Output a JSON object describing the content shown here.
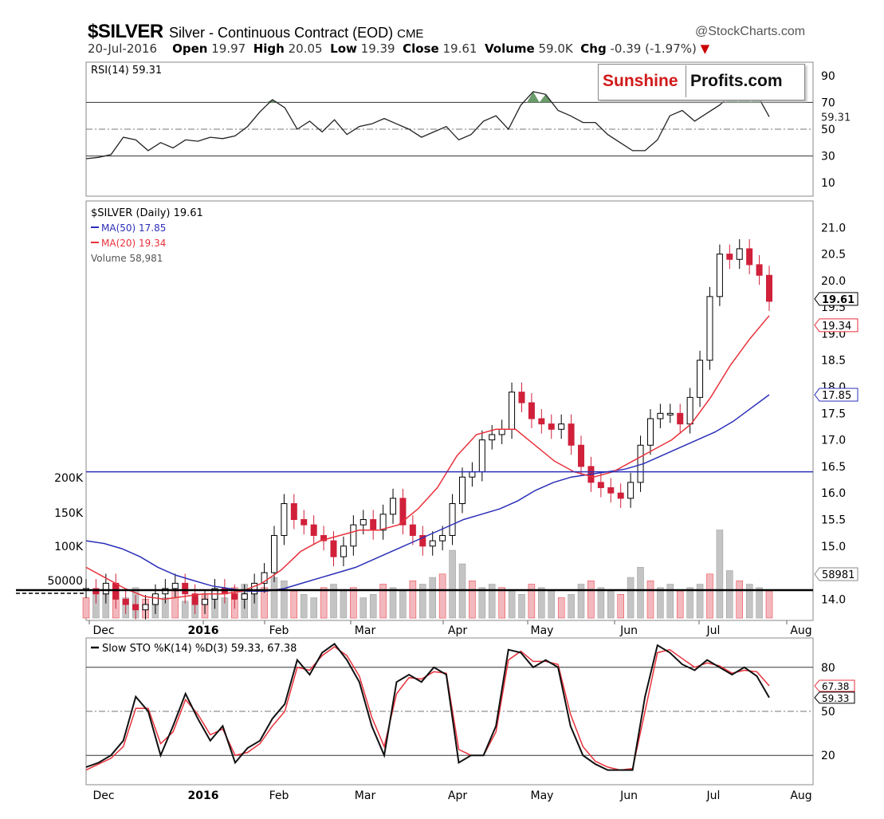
{
  "header": {
    "ticker": "$SILVER",
    "description": "Silver - Continuous Contract (EOD)",
    "exchange": "CME",
    "source": "@StockCharts.com",
    "date": "20-Jul-2016",
    "open_label": "Open",
    "open": "19.97",
    "high_label": "High",
    "high": "20.05",
    "low_label": "Low",
    "low": "19.39",
    "close_label": "Close",
    "close": "19.61",
    "volume_label": "Volume",
    "volume": "59.0K",
    "chg_label": "Chg",
    "chg": "-0.39 (-1.97%)"
  },
  "watermark": {
    "part1": "Sunshine",
    "part2": "Profits.com"
  },
  "colors": {
    "ma50": "#2b2fb8",
    "ma20": "#e8323c",
    "up": "#000000",
    "down": "#d0203a",
    "overbought_fill": "#6b9a6b",
    "level_line": "#2b2fb8"
  },
  "chart_data": [
    {
      "type": "line",
      "title": "RSI(14) 59.31",
      "series": [
        {
          "name": "RSI(14)",
          "values": [
            28,
            29,
            31,
            44,
            42,
            34,
            40,
            36,
            42,
            41,
            44,
            43,
            45,
            52,
            63,
            72,
            66,
            50,
            56,
            48,
            57,
            46,
            52,
            54,
            58,
            54,
            50,
            44,
            48,
            52,
            42,
            46,
            56,
            60,
            50,
            68,
            78,
            76,
            64,
            60,
            55,
            55,
            46,
            40,
            34,
            34,
            42,
            60,
            64,
            56,
            62,
            68,
            76,
            80,
            76,
            59.31
          ]
        }
      ],
      "ylim": [
        0,
        100
      ],
      "yticks": [
        "90",
        "70",
        "50",
        "30",
        "10"
      ],
      "reference_lines": [
        70,
        50,
        30
      ],
      "last_value_label": "59.31"
    },
    {
      "type": "line",
      "title": "$SILVER (Daily) 19.61",
      "xlabels": [
        "Dec",
        "2016",
        "Feb",
        "Mar",
        "Apr",
        "May",
        "Jun",
        "Jul",
        "Aug"
      ],
      "ylim": [
        13.6,
        21.5
      ],
      "yticks": [
        "21.0",
        "20.5",
        "20.0",
        "19.5",
        "19.0",
        "18.5",
        "18.0",
        "17.5",
        "17.0",
        "16.5",
        "16.0",
        "15.5",
        "15.0",
        "14.5",
        "14.0"
      ],
      "price": [
        14.2,
        14.1,
        14.3,
        14.0,
        13.9,
        13.8,
        13.9,
        14.1,
        14.2,
        14.3,
        14.1,
        13.9,
        14.0,
        14.2,
        14.1,
        14.0,
        14.1,
        14.3,
        14.5,
        15.2,
        15.8,
        15.5,
        15.4,
        15.2,
        15.1,
        14.8,
        15.0,
        15.4,
        15.5,
        15.3,
        15.6,
        15.9,
        15.4,
        15.2,
        15.0,
        15.1,
        15.2,
        15.8,
        16.3,
        16.4,
        17.0,
        17.1,
        17.2,
        17.9,
        17.7,
        17.4,
        17.3,
        17.2,
        17.3,
        16.9,
        16.5,
        16.2,
        16.1,
        16.0,
        15.9,
        16.2,
        16.9,
        17.4,
        17.5,
        17.5,
        17.3,
        17.8,
        18.5,
        19.7,
        20.5,
        20.4,
        20.6,
        20.3,
        20.1,
        19.61
      ],
      "series": [
        {
          "name": "MA(50) 17.85",
          "values": [
            15.1,
            15.05,
            14.95,
            14.8,
            14.6,
            14.45,
            14.35,
            14.25,
            14.2,
            14.15,
            14.15,
            14.2,
            14.3,
            14.4,
            14.5,
            14.6,
            14.75,
            14.9,
            15.05,
            15.2,
            15.35,
            15.5,
            15.6,
            15.7,
            15.85,
            16.05,
            16.2,
            16.3,
            16.35,
            16.4,
            16.45,
            16.55,
            16.7,
            16.85,
            17.0,
            17.15,
            17.35,
            17.6,
            17.85
          ]
        },
        {
          "name": "MA(20) 19.34",
          "values": [
            14.6,
            14.4,
            14.2,
            14.05,
            14.0,
            14.05,
            14.1,
            14.1,
            14.15,
            14.3,
            14.55,
            14.9,
            15.1,
            15.2,
            15.3,
            15.3,
            15.4,
            15.7,
            16.1,
            16.7,
            17.1,
            17.2,
            17.2,
            16.9,
            16.6,
            16.4,
            16.3,
            16.4,
            16.6,
            16.8,
            17.0,
            17.3,
            17.8,
            18.4,
            18.9,
            19.34
          ]
        }
      ],
      "volume_label": "Volume 58,981",
      "volume_ticks": [
        "200K",
        "150K",
        "100K",
        "50000"
      ],
      "volume": [
        30,
        40,
        35,
        50,
        30,
        45,
        28,
        35,
        30,
        40,
        25,
        30,
        35,
        40,
        30,
        45,
        50,
        40,
        45,
        60,
        55,
        40,
        35,
        30,
        45,
        50,
        40,
        45,
        30,
        35,
        50,
        45,
        40,
        55,
        50,
        60,
        65,
        100,
        80,
        55,
        45,
        50,
        45,
        40,
        35,
        50,
        45,
        40,
        30,
        35,
        50,
        55,
        45,
        40,
        35,
        60,
        75,
        55,
        45,
        50,
        40,
        45,
        50,
        65,
        130,
        70,
        55,
        50,
        45,
        40
      ],
      "horizontal_line": 16.4,
      "last_value_labels": [
        "19.61",
        "19.34",
        "17.85",
        "58981"
      ]
    },
    {
      "type": "line",
      "title": "Slow STO %K(14) %D(3) 59.33, 67.38",
      "xlabels": [
        "Dec",
        "2016",
        "Feb",
        "Mar",
        "Apr",
        "May",
        "Jun",
        "Jul",
        "Aug"
      ],
      "ylim": [
        0,
        100
      ],
      "yticks": [
        "80",
        "50",
        "20"
      ],
      "reference_lines": [
        80,
        50,
        20
      ],
      "series": [
        {
          "name": "%K(14)",
          "values": [
            12,
            15,
            20,
            30,
            60,
            50,
            20,
            40,
            62,
            45,
            30,
            40,
            15,
            25,
            30,
            45,
            55,
            85,
            75,
            90,
            96,
            85,
            70,
            40,
            20,
            70,
            75,
            70,
            80,
            75,
            15,
            20,
            20,
            40,
            92,
            90,
            80,
            85,
            80,
            40,
            20,
            14,
            10,
            10,
            10,
            60,
            95,
            90,
            82,
            78,
            85,
            80,
            75,
            80,
            74,
            59.33
          ]
        },
        {
          "name": "%D(3)",
          "values": [
            10,
            14,
            18,
            26,
            52,
            52,
            28,
            36,
            58,
            48,
            34,
            38,
            20,
            22,
            28,
            40,
            50,
            80,
            78,
            88,
            94,
            88,
            74,
            46,
            26,
            62,
            73,
            72,
            77,
            76,
            24,
            20,
            20,
            36,
            85,
            91,
            84,
            84,
            82,
            48,
            26,
            16,
            12,
            10,
            11,
            50,
            90,
            92,
            86,
            80,
            83,
            81,
            76,
            78,
            77,
            67.38
          ]
        }
      ],
      "last_value_labels": [
        "67.38",
        "59.33"
      ]
    }
  ]
}
